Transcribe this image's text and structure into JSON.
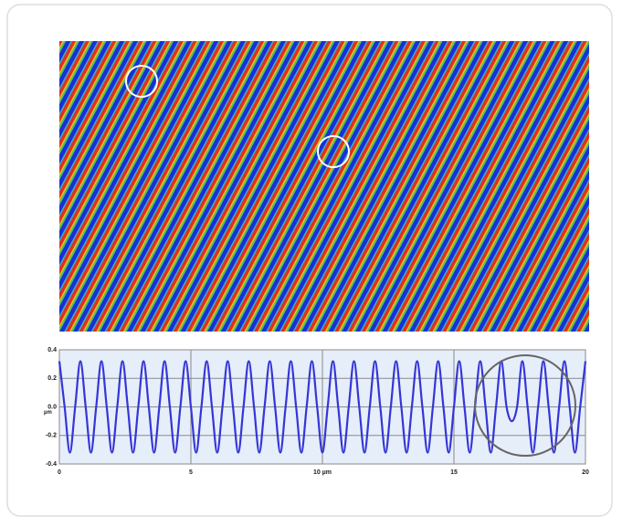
{
  "chart_data": {
    "type": "line",
    "x": [
      0,
      0.2,
      0.4,
      0.6,
      0.8,
      1,
      1.2,
      1.4,
      1.6,
      1.8,
      2,
      2.2,
      2.4,
      2.6,
      2.8,
      3,
      3.2,
      3.4,
      3.6,
      3.8,
      4,
      4.2,
      4.4,
      4.6,
      4.8,
      5,
      5.2,
      5.4,
      5.6,
      5.8,
      6,
      6.2,
      6.4,
      6.6,
      6.8,
      7,
      7.2,
      7.4,
      7.6,
      7.8,
      8,
      8.2,
      8.4,
      8.6,
      8.8,
      9,
      9.2,
      9.4,
      9.6,
      9.8,
      10,
      10.2,
      10.4,
      10.6,
      10.8,
      11,
      11.2,
      11.4,
      11.6,
      11.8,
      12,
      12.2,
      12.4,
      12.6,
      12.8,
      13,
      13.2,
      13.4,
      13.6,
      13.8,
      14,
      14.2,
      14.4,
      14.6,
      14.8,
      15,
      15.2,
      15.4,
      15.6,
      15.8,
      16,
      16.2,
      16.4,
      16.6,
      16.8,
      17,
      17.2,
      17.4,
      17.6,
      17.8,
      18,
      18.2,
      18.4,
      18.6,
      18.8,
      19,
      19.2,
      19.4,
      19.6,
      19.8,
      20
    ],
    "values": [
      0.32,
      0,
      -0.32,
      0,
      0.32,
      0,
      -0.32,
      0,
      0.32,
      0,
      -0.32,
      0,
      0.32,
      0,
      -0.32,
      0,
      0.32,
      0,
      -0.32,
      0,
      0.32,
      0,
      -0.32,
      0,
      0.32,
      0,
      -0.32,
      0,
      0.32,
      0,
      -0.32,
      0,
      0.32,
      0,
      -0.32,
      0,
      0.32,
      0,
      -0.32,
      0,
      0.32,
      0,
      -0.32,
      0,
      0.32,
      0,
      -0.32,
      0,
      0.32,
      0,
      -0.32,
      0,
      0.32,
      0,
      -0.32,
      0,
      0.32,
      0,
      -0.32,
      0,
      0.32,
      0,
      -0.32,
      0,
      0.32,
      0,
      -0.32,
      0,
      0.32,
      0,
      -0.32,
      0,
      0.32,
      0,
      -0.32,
      0,
      0.32,
      0,
      -0.32,
      0,
      0.32,
      0,
      -0.32,
      0,
      0.32,
      0,
      -0.1,
      0,
      0.32,
      0,
      -0.32,
      0,
      0.32,
      0,
      -0.32,
      0,
      0.32,
      0,
      -0.32,
      0,
      0.32
    ],
    "color": "#3535d8",
    "xlim": [
      0,
      20
    ],
    "xticks": [
      0,
      5,
      {
        "value": 10,
        "label": "10 µm"
      },
      15,
      20
    ],
    "ylim": [
      -0.4,
      0.4
    ],
    "yticks": [
      0.4,
      0.2,
      {
        "value": 0,
        "label": "0.0"
      },
      -0.2,
      -0.4
    ],
    "ylabel": "µm",
    "grid": true
  }
}
